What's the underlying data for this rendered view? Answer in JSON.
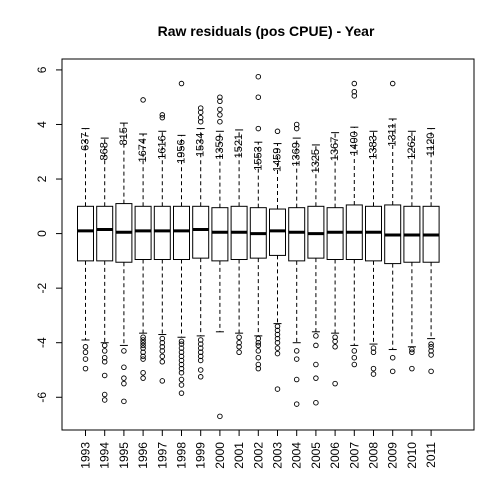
{
  "chart_data": {
    "type": "box",
    "title": "Raw residuals (pos CPUE) - Year",
    "xlabel": "",
    "ylabel": "",
    "ylim": [
      -7.2,
      6.4
    ],
    "y_ticks": [
      -6,
      -4,
      -2,
      0,
      2,
      4,
      6
    ],
    "categories": [
      "1993",
      "1994",
      "1995",
      "1996",
      "1997",
      "1998",
      "1999",
      "2000",
      "2001",
      "2002",
      "2003",
      "2004",
      "2005",
      "2006",
      "2007",
      "2008",
      "2009",
      "2010",
      "2011"
    ],
    "counts": [
      "637",
      "868",
      "815",
      "1674",
      "1616",
      "1956",
      "1534",
      "1359",
      "1521",
      "1553",
      "1459",
      "1369",
      "1325",
      "1367",
      "1400",
      "1383",
      "1311",
      "1262",
      "1120"
    ],
    "boxes": [
      {
        "q1": -1.0,
        "median": 0.1,
        "q3": 1.0,
        "whisker_low": -3.9,
        "whisker_high": 3.85,
        "outliers": [
          -4.15,
          -4.35,
          -4.6,
          -4.95
        ]
      },
      {
        "q1": -1.0,
        "median": 0.15,
        "q3": 1.0,
        "whisker_low": -4.0,
        "whisker_high": 3.5,
        "outliers": [
          -4.1,
          -4.3,
          -4.55,
          -4.7,
          -5.2,
          -5.9,
          -6.1
        ]
      },
      {
        "q1": -1.05,
        "median": 0.05,
        "q3": 1.1,
        "whisker_low": -4.1,
        "whisker_high": 4.05,
        "outliers": [
          -4.3,
          -4.9,
          -5.3,
          -5.5,
          -6.15
        ]
      },
      {
        "q1": -0.95,
        "median": 0.1,
        "q3": 1.0,
        "whisker_low": -3.65,
        "whisker_high": 3.65,
        "outliers": [
          -3.8,
          -3.9,
          -4.0,
          -4.1,
          -4.2,
          -4.35,
          -4.5,
          -4.6,
          -5.1,
          -5.3,
          4.9
        ]
      },
      {
        "q1": -0.95,
        "median": 0.1,
        "q3": 1.0,
        "whisker_low": -3.7,
        "whisker_high": 3.75,
        "outliers": [
          -3.85,
          -4.0,
          -4.15,
          -4.3,
          -4.5,
          -4.7,
          -5.4,
          4.25,
          4.35
        ]
      },
      {
        "q1": -0.95,
        "median": 0.1,
        "q3": 1.0,
        "whisker_low": -3.8,
        "whisker_high": 3.6,
        "outliers": [
          -3.95,
          -4.05,
          -4.2,
          -4.35,
          -4.5,
          -4.65,
          -4.8,
          -4.95,
          -5.1,
          -5.35,
          -5.55,
          -5.85,
          5.5
        ]
      },
      {
        "q1": -0.9,
        "median": 0.15,
        "q3": 1.0,
        "whisker_low": -3.75,
        "whisker_high": 3.85,
        "outliers": [
          -3.9,
          -4.05,
          -4.2,
          -4.35,
          -4.5,
          -4.65,
          -5.0,
          -5.25,
          4.1,
          4.25,
          4.45,
          4.6
        ]
      },
      {
        "q1": -1.0,
        "median": 0.05,
        "q3": 0.95,
        "whisker_low": -3.6,
        "whisker_high": 3.75,
        "outliers": [
          -6.7,
          4.1,
          4.35,
          4.55,
          4.85,
          5.0
        ]
      },
      {
        "q1": -0.95,
        "median": 0.05,
        "q3": 1.0,
        "whisker_low": -3.65,
        "whisker_high": 3.8,
        "outliers": [
          -3.8,
          -4.0,
          -4.15,
          -4.35
        ]
      },
      {
        "q1": -0.9,
        "median": 0.0,
        "q3": 0.95,
        "whisker_low": -3.75,
        "whisker_high": 3.35,
        "outliers": [
          -3.85,
          -4.0,
          -4.1,
          -4.3,
          -4.55,
          -4.8,
          -4.95,
          3.85,
          5.0,
          5.75
        ]
      },
      {
        "q1": -0.8,
        "median": 0.1,
        "q3": 0.9,
        "whisker_low": -3.3,
        "whisker_high": 3.3,
        "outliers": [
          -3.4,
          -3.55,
          -3.7,
          -3.85,
          -4.0,
          -4.2,
          -4.4,
          -5.7,
          3.75
        ]
      },
      {
        "q1": -1.0,
        "median": 0.05,
        "q3": 0.95,
        "whisker_low": -4.0,
        "whisker_high": 3.5,
        "outliers": [
          -4.3,
          -4.6,
          -5.35,
          -6.25,
          3.85,
          4.0
        ]
      },
      {
        "q1": -0.9,
        "median": 0.0,
        "q3": 1.0,
        "whisker_low": -3.6,
        "whisker_high": 3.25,
        "outliers": [
          -3.75,
          -4.1,
          -4.8,
          -5.3,
          -6.2
        ]
      },
      {
        "q1": -0.95,
        "median": 0.05,
        "q3": 0.95,
        "whisker_low": -3.65,
        "whisker_high": 3.7,
        "outliers": [
          -3.8,
          -3.95,
          -4.15,
          -5.5
        ]
      },
      {
        "q1": -0.95,
        "median": 0.05,
        "q3": 1.05,
        "whisker_low": -4.1,
        "whisker_high": 3.9,
        "outliers": [
          -4.3,
          -4.55,
          -4.8,
          5.05,
          5.2,
          5.5
        ]
      },
      {
        "q1": -1.0,
        "median": 0.05,
        "q3": 1.0,
        "whisker_low": -4.05,
        "whisker_high": 3.75,
        "outliers": [
          -4.2,
          -4.35,
          -4.95,
          -5.15
        ]
      },
      {
        "q1": -1.1,
        "median": -0.05,
        "q3": 1.05,
        "whisker_low": -4.25,
        "whisker_high": 4.2,
        "outliers": [
          -4.55,
          -5.05,
          5.5
        ]
      },
      {
        "q1": -1.05,
        "median": -0.05,
        "q3": 1.0,
        "whisker_low": -4.15,
        "whisker_high": 3.75,
        "outliers": [
          -4.25,
          -4.35,
          -4.95
        ]
      },
      {
        "q1": -1.05,
        "median": -0.05,
        "q3": 1.0,
        "whisker_low": -3.85,
        "whisker_high": 3.85,
        "outliers": [
          -4.05,
          -4.15,
          -4.3,
          -4.45,
          -5.05
        ]
      }
    ]
  }
}
